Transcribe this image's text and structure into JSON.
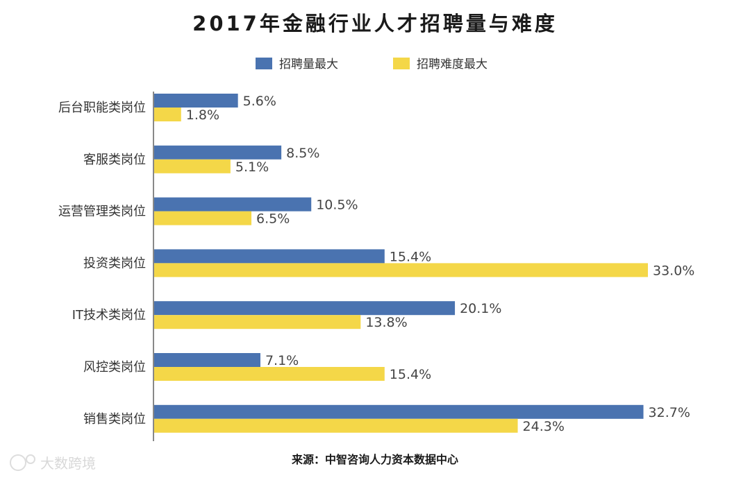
{
  "chart_data": {
    "type": "bar",
    "orientation": "horizontal",
    "title": "2017年金融行业人才招聘量与难度",
    "categories": [
      "后台职能类岗位",
      "客服类岗位",
      "运营管理类岗位",
      "投资类岗位",
      "IT技术类岗位",
      "风控类岗位",
      "销售类岗位"
    ],
    "series": [
      {
        "name": "招聘量最大",
        "color": "#4a73b0",
        "values": [
          5.6,
          8.5,
          10.5,
          15.4,
          20.1,
          7.1,
          32.7
        ],
        "labels": [
          "5.6%",
          "8.5%",
          "10.5%",
          "15.4%",
          "20.1%",
          "7.1%",
          "32.7%"
        ]
      },
      {
        "name": "招聘难度最大",
        "color": "#f4d748",
        "values": [
          1.8,
          5.1,
          6.5,
          33.0,
          13.8,
          15.4,
          24.3
        ],
        "labels": [
          "1.8%",
          "5.1%",
          "6.5%",
          "33.0%",
          "13.8%",
          "15.4%",
          "24.3%"
        ]
      }
    ],
    "xlim": [
      0,
      33.0
    ],
    "legend_position": "top-center",
    "xlabel": "",
    "ylabel": "",
    "grid": false
  },
  "source": "来源：中智咨询人力资本数据中心",
  "watermark": "大数跨境",
  "colors": {
    "axis": "#888888",
    "text": "#333333"
  }
}
